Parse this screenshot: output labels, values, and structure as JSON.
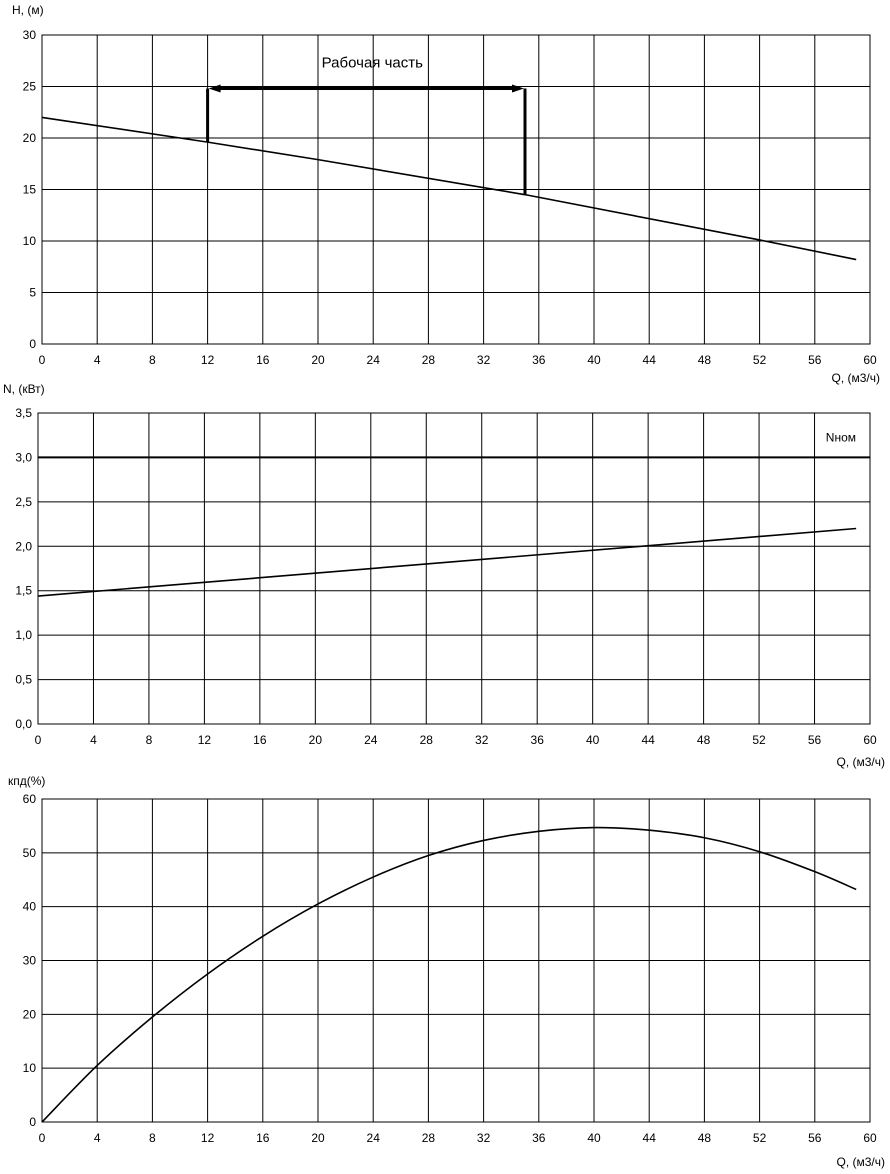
{
  "chart_data": [
    {
      "type": "line",
      "ylabel": "H, (м)",
      "xlabel": "Q, (м3/ч)",
      "xlim": [
        0,
        60
      ],
      "ylim": [
        0,
        30
      ],
      "x_ticks": [
        "0",
        "4",
        "8",
        "12",
        "16",
        "20",
        "24",
        "28",
        "32",
        "36",
        "40",
        "44",
        "48",
        "52",
        "56",
        "60"
      ],
      "y_ticks": [
        "0",
        "5",
        "10",
        "15",
        "20",
        "25",
        "30"
      ],
      "grid": true,
      "series": [
        {
          "values_x": [
            0,
            12,
            20,
            35,
            52,
            59
          ],
          "values_y": [
            22.0,
            19.6,
            17.9,
            14.5,
            10.1,
            8.2
          ]
        }
      ],
      "annotation": {
        "text": "Рабочая часть",
        "x_start": 12,
        "x_end": 35,
        "y_level": 24.8
      }
    },
    {
      "type": "line",
      "ylabel": "N, (кВт)",
      "xlabel": "Q, (м3/ч)",
      "xlim": [
        0,
        60
      ],
      "ylim": [
        0,
        3.5
      ],
      "x_ticks": [
        "0",
        "4",
        "8",
        "12",
        "16",
        "20",
        "24",
        "28",
        "32",
        "36",
        "40",
        "44",
        "48",
        "52",
        "56",
        "60"
      ],
      "y_ticks": [
        "0,0",
        "0,5",
        "1,0",
        "1,5",
        "2,0",
        "2,5",
        "3,0",
        "3,5"
      ],
      "grid": true,
      "series": [
        {
          "values_x": [
            0,
            59
          ],
          "values_y": [
            1.44,
            2.2
          ]
        }
      ],
      "reference_line": {
        "label": "Nном",
        "y": 3.0
      }
    },
    {
      "type": "line",
      "ylabel": "кпд(%)",
      "xlabel": "Q, (м3/ч)",
      "xlim": [
        0,
        60
      ],
      "ylim": [
        0,
        60
      ],
      "x_ticks": [
        "0",
        "4",
        "8",
        "12",
        "16",
        "20",
        "24",
        "28",
        "32",
        "36",
        "40",
        "44",
        "48",
        "52",
        "56",
        "60"
      ],
      "y_ticks": [
        "0",
        "10",
        "20",
        "30",
        "40",
        "50",
        "60"
      ],
      "grid": true,
      "series": [
        {
          "values_x": [
            0,
            4,
            8,
            12,
            16,
            20,
            24,
            28,
            32,
            36,
            40,
            44,
            48,
            52,
            56,
            59
          ],
          "values_y": [
            0,
            10.5,
            19.5,
            27.5,
            34.5,
            40.5,
            45.5,
            49.5,
            52.3,
            54,
            54.7,
            54.2,
            52.8,
            50.2,
            46.5,
            43.2
          ]
        }
      ]
    }
  ]
}
